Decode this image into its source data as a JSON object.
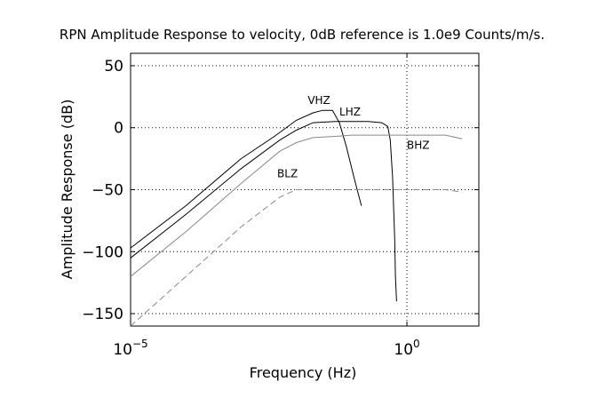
{
  "chart_data": {
    "type": "line",
    "title": "RPN Amplitude Response to velocity, 0dB reference is 1.0e9 Counts/m/s.",
    "xlabel": "Frequency (Hz)",
    "ylabel": "Amplitude Response (dB)",
    "xscale": "log",
    "xlim": [
      1e-05,
      20
    ],
    "ylim": [
      -160,
      60
    ],
    "grid": true,
    "xticks": [
      {
        "value": 1e-05,
        "base": "10",
        "exp": "−5"
      },
      {
        "value": 1,
        "base": "10",
        "exp": "0"
      }
    ],
    "yticks": [
      {
        "value": 50,
        "label": "50"
      },
      {
        "value": 0,
        "label": "0"
      },
      {
        "value": -50,
        "label": "−50"
      },
      {
        "value": -100,
        "label": "−100"
      },
      {
        "value": -150,
        "label": "−150"
      }
    ],
    "series": [
      {
        "name": "VHZ",
        "color": "#000000",
        "dash": "",
        "label_x": 0.016,
        "label_y": 19,
        "x": [
          1e-05,
          0.0001,
          0.001,
          0.004,
          0.01,
          0.02,
          0.03,
          0.045,
          0.06,
          0.08,
          0.11,
          0.15
        ],
        "y": [
          -97,
          -63,
          -25,
          -7,
          6,
          12,
          14,
          14,
          4,
          -15,
          -40,
          -63
        ]
      },
      {
        "name": "LHZ",
        "color": "#000000",
        "dash": "",
        "label_x": 0.06,
        "label_y": 10,
        "x": [
          1e-05,
          0.0001,
          0.001,
          0.005,
          0.01,
          0.02,
          0.05,
          0.1,
          0.2,
          0.35,
          0.45,
          0.5,
          0.55,
          0.6,
          0.62,
          0.65
        ],
        "y": [
          -105,
          -70,
          -33,
          -10,
          -2,
          4,
          5,
          5,
          5,
          4,
          1,
          -10,
          -40,
          -90,
          -120,
          -140
        ]
      },
      {
        "name": "BHZ",
        "color": "#888888",
        "dash": "",
        "label_x": 1.0,
        "label_y": -17,
        "x": [
          1e-05,
          0.0001,
          0.001,
          0.005,
          0.01,
          0.02,
          0.05,
          0.1,
          0.5,
          1,
          5,
          10
        ],
        "y": [
          -120,
          -84,
          -45,
          -19,
          -12,
          -8,
          -7,
          -6,
          -6,
          -6,
          -6,
          -9
        ]
      },
      {
        "name": "BLZ",
        "color": "#888888",
        "dash": "7,4",
        "label_x": 0.0045,
        "label_y": -40,
        "x": [
          1e-05,
          0.0001,
          0.001,
          0.005,
          0.01,
          0.02,
          0.05,
          0.1,
          0.5,
          1,
          5,
          10
        ],
        "y": [
          -160,
          -120,
          -80,
          -56,
          -50,
          -50,
          -50,
          -50,
          -50,
          -50,
          -50,
          -52
        ]
      }
    ]
  }
}
